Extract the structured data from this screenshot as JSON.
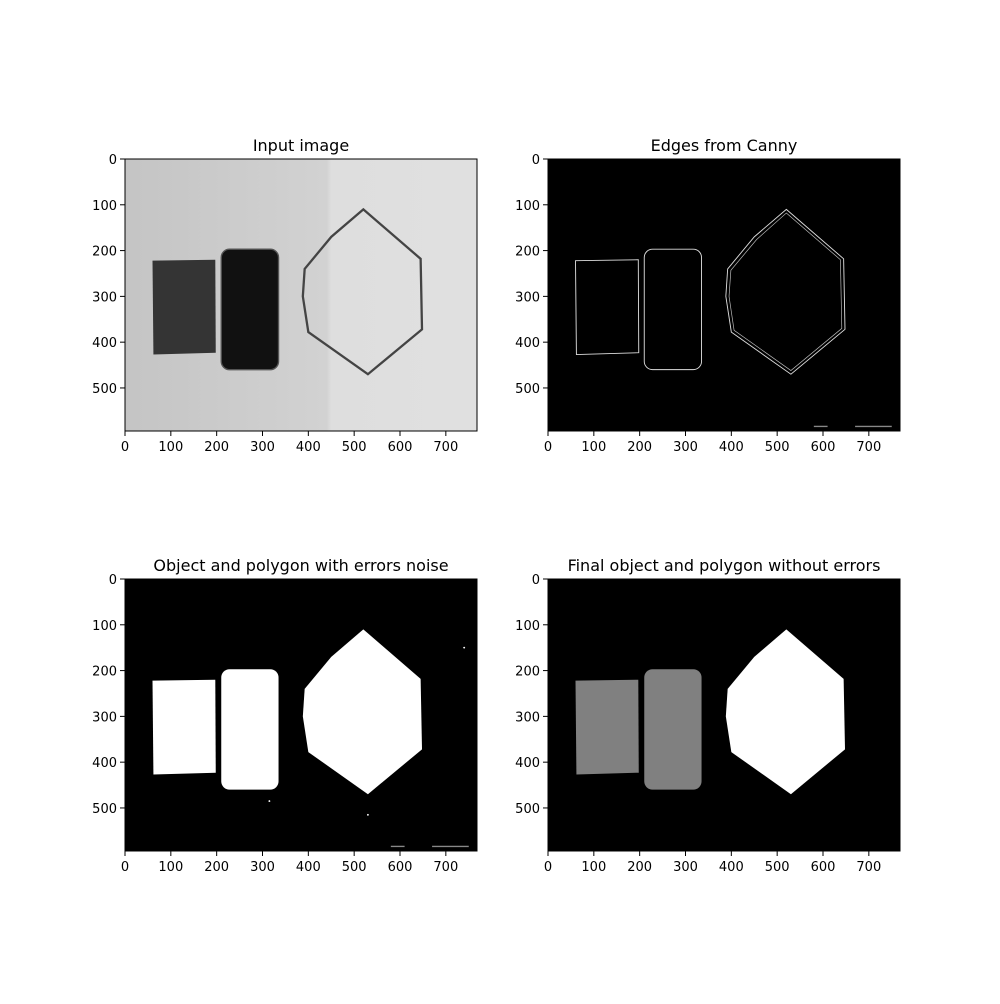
{
  "chart_data": [
    {
      "type": "image",
      "title": "Input image",
      "xlim": [
        0,
        768
      ],
      "ylim": [
        594,
        0
      ],
      "xticks": [
        0,
        100,
        200,
        300,
        400,
        500,
        600,
        700
      ],
      "yticks": [
        0,
        100,
        200,
        300,
        400,
        500
      ]
    },
    {
      "type": "image",
      "title": "Edges from Canny",
      "xlim": [
        0,
        768
      ],
      "ylim": [
        594,
        0
      ],
      "xticks": [
        0,
        100,
        200,
        300,
        400,
        500,
        600,
        700
      ],
      "yticks": [
        0,
        100,
        200,
        300,
        400,
        500
      ]
    },
    {
      "type": "image",
      "title": "Object and polygon with errors noise",
      "xlim": [
        0,
        768
      ],
      "ylim": [
        594,
        0
      ],
      "xticks": [
        0,
        100,
        200,
        300,
        400,
        500,
        600,
        700
      ],
      "yticks": [
        0,
        100,
        200,
        300,
        400,
        500
      ]
    },
    {
      "type": "image",
      "title": "Final object and polygon without errors",
      "xlim": [
        0,
        768
      ],
      "ylim": [
        594,
        0
      ],
      "xticks": [
        0,
        100,
        200,
        300,
        400,
        500,
        600,
        700
      ],
      "yticks": [
        0,
        100,
        200,
        300,
        400,
        500
      ]
    }
  ]
}
